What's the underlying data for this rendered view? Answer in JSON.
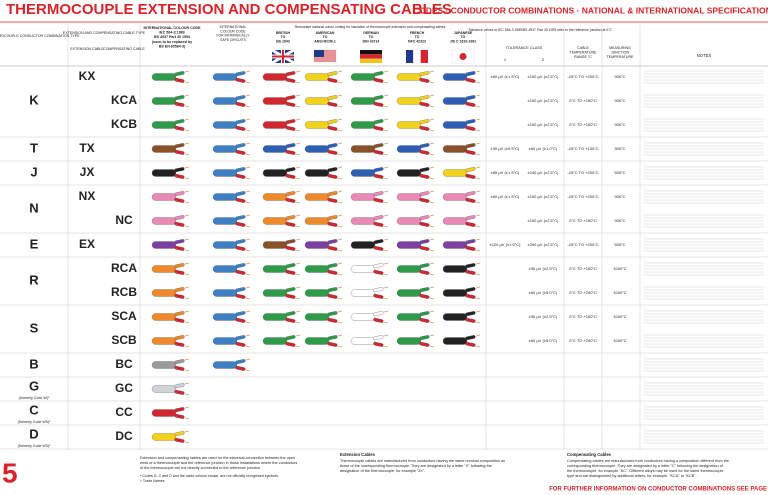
{
  "header": {
    "title": "THERMOCOUPLE EXTENSION AND COMPENSATING CABLES",
    "subtitle": "CODES · CONDUCTOR COMBINATIONS · NATIONAL & INTERNATIONAL SPECIFICATIONS"
  },
  "columns": {
    "type": "THERMOCOUPLE CONDUCTOR COMBINATION TYPE",
    "cable_type": "EXTENSION AND COMPENSATING CABLE TYPE",
    "extension": "EXTENSION CABLE",
    "compensating": "COMPENSATING CABLE",
    "international": [
      "INTERNATIONAL COLOUR CODE",
      "IEC 584-3:1989",
      "BS 4937 Part 30 1993",
      "(soon to be replaced by",
      "BS EN 60584-3)"
    ],
    "intrinsic": [
      "INTERNATIONAL",
      "COLOUR CODE",
      "FOR INTRINSICALLY",
      "SAFE CIRCUITS"
    ],
    "redundant": "Redundant national colour coding for insulation of thermocouple extension and compensating cables",
    "national": [
      [
        "BRITISH",
        "TO",
        "BS 1843"
      ],
      [
        "AMERICAN",
        "TO",
        "ANSI MC96.1"
      ],
      [
        "GERMAN",
        "TO",
        "DIN 43714"
      ],
      [
        "FRENCH",
        "TO",
        "NFC 42323"
      ],
      [
        "JAPANESE",
        "TO",
        "JIS C 1610-1981"
      ]
    ],
    "tolerance_note": "Tolerance values to IEC 584-3 1989/BS 4937 Part 30 1993 refer to the reference junction at 0°C",
    "tolerance": "TOLERANCE CLASS",
    "class1": "1",
    "class2": "2",
    "range": [
      "CABLE",
      "TEMPERATURE",
      "RANGE °C"
    ],
    "junction": [
      "MEASURING",
      "JUNCTION",
      "TEMPERATURE"
    ],
    "notes": "NOTES"
  },
  "groups": [
    {
      "type": "K",
      "rows": [
        {
          "ext": "KX",
          "comp": null,
          "class1": "±60 μV (±1.5°C)",
          "class2": "±100 μV (±2.5°C)",
          "range": "-25°C TO +200°C",
          "junction": "900°C",
          "cables": [
            "#2e9a4a",
            "#3f7fc4",
            "#d22630",
            "#f3d21b",
            "#2e9a4a",
            "#f3d21b",
            "#2d5fb5"
          ]
        },
        {
          "ext": null,
          "comp": "KCA",
          "class1": null,
          "class2": "±100 μV (±2.5°C)",
          "range": "0°C TO +150°C",
          "junction": "900°C",
          "cables": [
            "#2e9a4a",
            "#3f7fc4",
            "#d22630",
            "#f3d21b",
            "#2e9a4a",
            "#f3d21b",
            "#2d5fb5"
          ]
        },
        {
          "ext": null,
          "comp": "KCB",
          "class1": null,
          "class2": "±100 μV (±2.5°C)",
          "range": "0°C TO +100°C",
          "junction": "900°C",
          "cables": [
            "#2e9a4a",
            "#3f7fc4",
            "#d22630",
            "#f3d21b",
            "#2e9a4a",
            "#f3d21b",
            "#2d5fb5"
          ]
        }
      ]
    },
    {
      "type": "T",
      "rows": [
        {
          "ext": "TX",
          "comp": null,
          "class1": "±30 μV (±0.5°C)",
          "class2": "±60 μV (±1.0°C)",
          "range": "-25°C TO +100°C",
          "junction": "300°C",
          "cables": [
            "#8a5028",
            "#3f7fc4",
            "#2d5fb5",
            "#2d5fb5",
            "#8a5028",
            "#2d5fb5",
            "#8a5028"
          ]
        }
      ]
    },
    {
      "type": "J",
      "rows": [
        {
          "ext": "JX",
          "comp": null,
          "class1": "±85 μV (±1.5°C)",
          "class2": "±140 μV (±2.5°C)",
          "range": "-25°C TO +200°C",
          "junction": "500°C",
          "cables": [
            "#222222",
            "#3f7fc4",
            "#222222",
            "#222222",
            "#2d5fb5",
            "#222222",
            "#f3d21b"
          ]
        }
      ]
    },
    {
      "type": "N",
      "rows": [
        {
          "ext": "NX",
          "comp": null,
          "class1": "±60 μV (±1.5°C)",
          "class2": "±100 μV (±2.5°C)",
          "range": "-25°C TO +200°C",
          "junction": "900°C",
          "cables": [
            "#e88ab5",
            "#3f7fc4",
            "#ef8a2a",
            "#ef8a2a",
            "#e88ab5",
            "#e88ab5",
            "#e88ab5"
          ]
        },
        {
          "ext": null,
          "comp": "NC",
          "class1": null,
          "class2": "±100 μV (±2.5°C)",
          "range": "0°C TO +150°C",
          "junction": "900°C",
          "cables": [
            "#e88ab5",
            "#3f7fc4",
            "#ef8a2a",
            "#ef8a2a",
            "#e88ab5",
            "#e88ab5",
            "#e88ab5"
          ]
        }
      ]
    },
    {
      "type": "E",
      "rows": [
        {
          "ext": "EX",
          "comp": null,
          "class1": "±120 μV (±1.5°C)",
          "class2": "±200 μV (±2.5°C)",
          "range": "-25°C TO +200°C",
          "junction": "500°C",
          "cables": [
            "#7b3fa0",
            "#3f7fc4",
            "#8a5028",
            "#7b3fa0",
            "#222222",
            "#7b3fa0",
            "#7b3fa0"
          ]
        }
      ]
    },
    {
      "type": "R",
      "rows": [
        {
          "ext": null,
          "comp": "RCA",
          "class1": null,
          "class2": "±30 μV (±2.5°C)",
          "range": "0°C TO +100°C",
          "junction": "1000°C",
          "cables": [
            "#ef8a2a",
            "#3f7fc4",
            "#2e9a4a",
            "#2e9a4a",
            "#ffffff",
            "#2e9a4a",
            "#222222"
          ]
        },
        {
          "ext": null,
          "comp": "RCB",
          "class1": null,
          "class2": "±60 μV (±5.0°C)",
          "range": "0°C TO +200°C",
          "junction": "1000°C",
          "cables": [
            "#ef8a2a",
            "#3f7fc4",
            "#2e9a4a",
            "#2e9a4a",
            "#ffffff",
            "#2e9a4a",
            "#222222"
          ]
        }
      ]
    },
    {
      "type": "S",
      "rows": [
        {
          "ext": null,
          "comp": "SCA",
          "class1": null,
          "class2": "±30 μV (±2.5°C)",
          "range": "0°C TO +100°C",
          "junction": "1000°C",
          "cables": [
            "#ef8a2a",
            "#3f7fc4",
            "#2e9a4a",
            "#2e9a4a",
            "#ffffff",
            "#2e9a4a",
            "#222222"
          ]
        },
        {
          "ext": null,
          "comp": "SCB",
          "class1": null,
          "class2": "±60 μV (±5.0°C)",
          "range": "0°C TO +200°C",
          "junction": "1000°C",
          "cables": [
            "#ef8a2a",
            "#3f7fc4",
            "#2e9a4a",
            "#2e9a4a",
            "#ffffff",
            "#2e9a4a",
            "#222222"
          ]
        }
      ]
    },
    {
      "type": "B",
      "rows": [
        {
          "ext": null,
          "comp": "BC",
          "class1": null,
          "class2": null,
          "range": null,
          "junction": null,
          "cables": [
            "#9a9a9a",
            "#3f7fc4"
          ]
        }
      ]
    },
    {
      "type": "G",
      "sub": "(formerly Code W)*",
      "rows": [
        {
          "ext": null,
          "comp": "GC",
          "class1": null,
          "class2": null,
          "range": null,
          "junction": null,
          "cables": [
            "#cfd3d6"
          ]
        }
      ]
    },
    {
      "type": "C",
      "sub": "(formerly Code W5)*",
      "rows": [
        {
          "ext": null,
          "comp": "CC",
          "class1": null,
          "class2": null,
          "range": null,
          "junction": null,
          "cables": [
            "#d22630"
          ]
        }
      ]
    },
    {
      "type": "D",
      "sub": "(formerly Code W3)*",
      "rows": [
        {
          "ext": null,
          "comp": "DC",
          "class1": null,
          "class2": null,
          "range": null,
          "junction": null,
          "cables": [
            "#f3d21b"
          ]
        }
      ]
    }
  ],
  "footer": {
    "page": "5",
    "intro": [
      "Extension and compensating cables are used for the electrical connection between the open",
      "ends of a thermocouple and the reference junction in those installations where the conductors",
      "of the thermocouple are not directly connected to the reference junction."
    ],
    "footnotes": [
      "* Codes G, C and D and the cable colours shown, are not officially recognised symbols.",
      "† Trade Names"
    ],
    "extension_title": "Extension Cables",
    "extension_text": [
      "Thermocouple cables are manufactured from conductors having the same nominal composition as",
      "those of the corresponding thermocouple. They are designated by a letter \"X\" following the",
      "designation of the thermocouple, for example \"JX\"."
    ],
    "compensating_title": "Compensating Cables",
    "compensating_text": [
      "Compensating cables are manufactured from conductors having a composition different from the",
      "corresponding thermocouple. They are designated by a letter \"C\" following the designation of",
      "the thermocouple, for example \"KC\". Different alloys may be used for the same thermocouple",
      "type and are distinguished by additional letters, for example, \"KCA\" or \"KCB\"."
    ],
    "more": "FOR FURTHER INFORMATION ON CONDUCTOR COMBINATIONS SEE PAGE"
  }
}
